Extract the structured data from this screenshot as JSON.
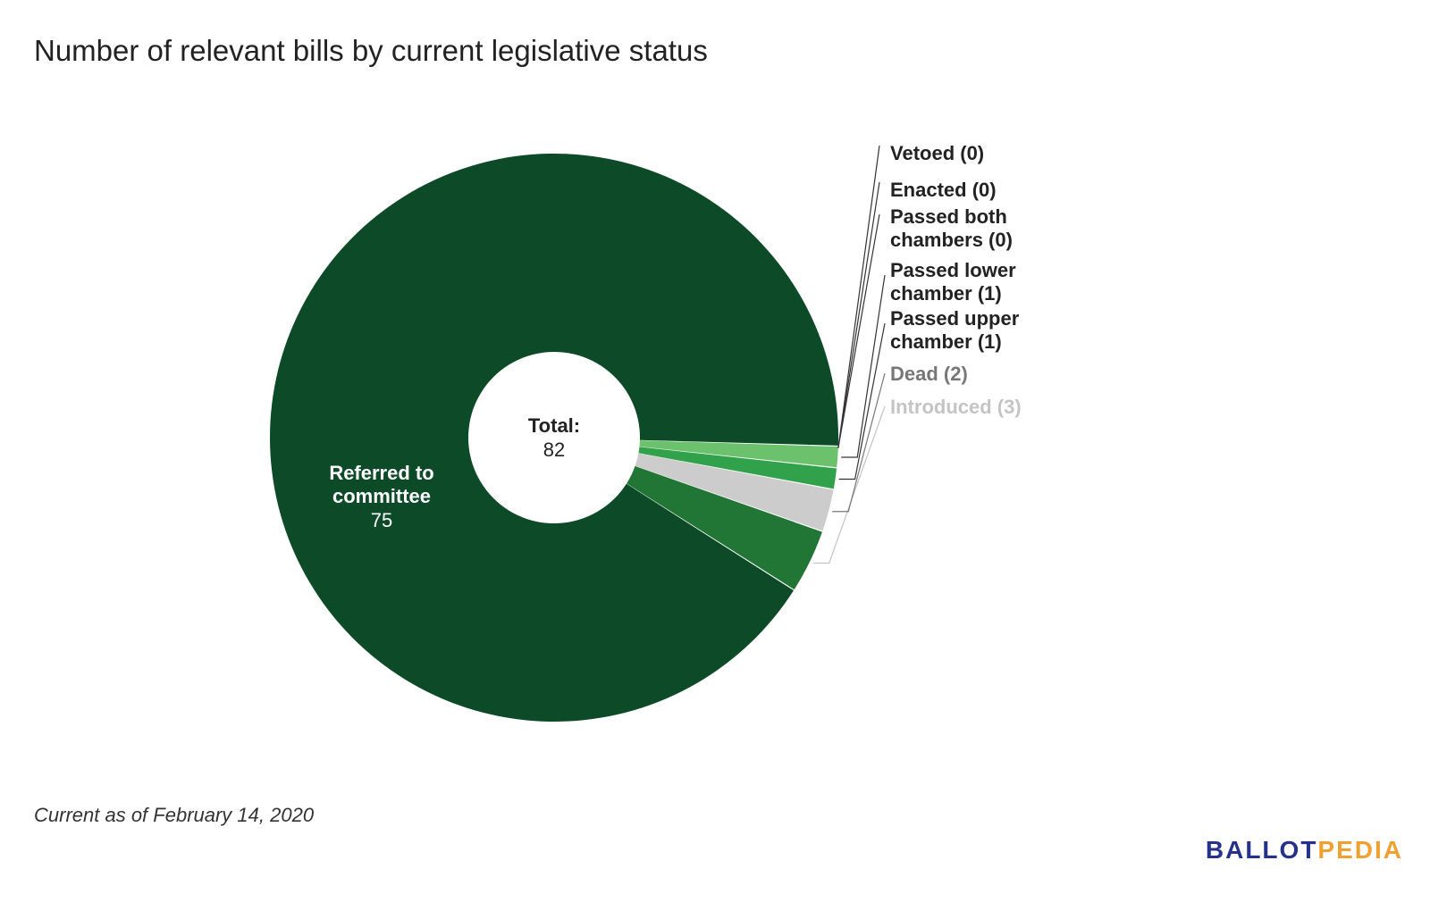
{
  "title": "Number of relevant bills by current legislative status",
  "footnote": "Current as of February 14, 2020",
  "brand": {
    "part1": "BALLOT",
    "part2": "PEDIA"
  },
  "colors": {
    "brand_blue": "#25318a",
    "brand_orange": "#f0a031"
  },
  "chart_data": {
    "type": "pie",
    "donut": true,
    "center_label": "Total:",
    "total": 82,
    "slices": [
      {
        "name": "Referred to committee",
        "value": 75,
        "color": "#0d4a28",
        "label_lines": [
          "Referred to",
          "committee"
        ],
        "label_color": "#ffffff",
        "inside": true
      },
      {
        "name": "Introduced",
        "value": 3,
        "color": "#217535",
        "label_lines": [
          "Introduced (3)"
        ],
        "label_color": "#c4c4c4"
      },
      {
        "name": "Dead",
        "value": 2,
        "color": "#cccccc",
        "label_lines": [
          "Dead (2)"
        ],
        "label_color": "#777777"
      },
      {
        "name": "Passed upper chamber",
        "value": 1,
        "color": "#31a14c",
        "label_lines": [
          "Passed upper",
          "chamber (1)"
        ],
        "label_color": "#222222"
      },
      {
        "name": "Passed lower chamber",
        "value": 1,
        "color": "#6cc26c",
        "label_lines": [
          "Passed lower",
          "chamber (1)"
        ],
        "label_color": "#222222"
      },
      {
        "name": "Passed both chambers",
        "value": 0,
        "color": "#9ad68f",
        "label_lines": [
          "Passed both",
          "chambers (0)"
        ],
        "label_color": "#222222"
      },
      {
        "name": "Enacted",
        "value": 0,
        "color": "#b9e3ad",
        "label_lines": [
          "Enacted (0)"
        ],
        "label_color": "#222222"
      },
      {
        "name": "Vetoed",
        "value": 0,
        "color": "#d8efcf",
        "label_lines": [
          "Vetoed (0)"
        ],
        "label_color": "#222222"
      }
    ]
  }
}
